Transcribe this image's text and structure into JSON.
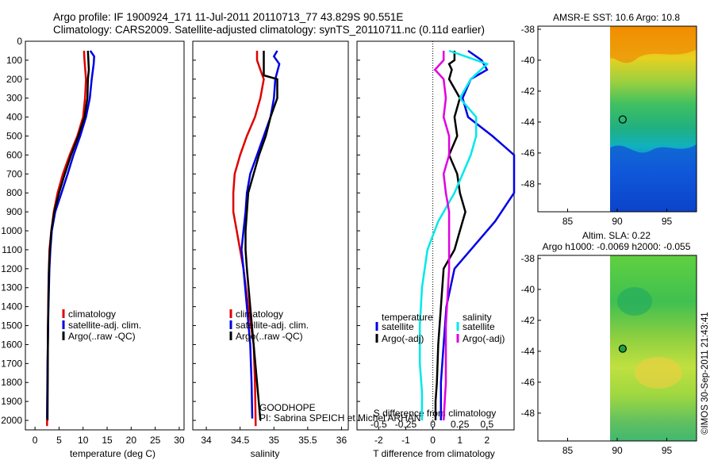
{
  "figure": {
    "title_line1": "Argo profile: IF 1900924_171 11-Jul-2011 20110713_77 43.829S 90.551E",
    "title_line2": "Climatology: CARS2009. Satellite-adjusted climatology: synTS_20110711.nc (0.11d earlier)",
    "project_label": "GOODHOPE",
    "pi_label": "PI: Sabrina SPEICH et Michel ARHAN",
    "credit_label": "©IMOS 30-Sep-2011 21:43:41"
  },
  "colors": {
    "climatology": "#e00000",
    "satellite": "#0000e6",
    "argo": "#000000",
    "sal_satellite": "#00e8e8",
    "sal_argo": "#e000e0"
  },
  "chart_data": [
    {
      "type": "line",
      "xlabel": "temperature (deg C)",
      "ylabel": "",
      "xlim": [
        -2,
        31
      ],
      "ylim": [
        2050,
        0
      ],
      "xticks": [
        0,
        5,
        10,
        15,
        20,
        25,
        30
      ],
      "yticks": [
        0,
        100,
        200,
        300,
        400,
        500,
        600,
        700,
        800,
        900,
        1000,
        1100,
        1200,
        1300,
        1400,
        1500,
        1600,
        1700,
        1800,
        1900,
        2000
      ],
      "legend": [
        "climatology",
        "satellite-adj. clim.",
        "Argo(..raw -QC)"
      ],
      "series": [
        {
          "name": "climatology",
          "color": "climatology",
          "x": [
            10.2,
            10.3,
            10.6,
            10.4,
            10.0,
            8.8,
            7.2,
            5.8,
            4.7,
            3.9,
            3.4,
            3.0,
            2.9,
            2.8,
            2.7,
            2.6,
            2.5
          ],
          "y": [
            50,
            100,
            200,
            300,
            400,
            500,
            600,
            700,
            800,
            900,
            1000,
            1100,
            1200,
            1300,
            1500,
            1800,
            2030
          ]
        },
        {
          "name": "satellite-adj. clim.",
          "color": "satellite",
          "x": [
            11.5,
            12.3,
            12.2,
            11.8,
            11.4,
            10.6,
            9.4,
            8.0,
            6.8,
            5.5,
            4.2,
            3.5,
            3.2,
            3.0,
            2.8,
            2.6,
            2.5
          ],
          "y": [
            50,
            80,
            120,
            200,
            300,
            400,
            500,
            600,
            700,
            800,
            900,
            1000,
            1100,
            1200,
            1400,
            1700,
            1990
          ]
        },
        {
          "name": "Argo(..raw -QC)",
          "color": "argo",
          "x": [
            11.0,
            11.1,
            11.2,
            11.0,
            10.9,
            10.3,
            9.0,
            7.5,
            6.2,
            5.0,
            4.0,
            3.4,
            3.1,
            2.9,
            2.7,
            2.6
          ],
          "y": [
            50,
            100,
            150,
            200,
            300,
            400,
            500,
            600,
            700,
            800,
            900,
            1000,
            1100,
            1200,
            1500,
            2000
          ]
        }
      ]
    },
    {
      "type": "line",
      "xlabel": "salinity",
      "ylabel": "",
      "xlim": [
        33.8,
        36.1
      ],
      "ylim": [
        2050,
        0
      ],
      "xticks": [
        34,
        34.5,
        35,
        35.5,
        36
      ],
      "legend": [
        "climatology",
        "satellite-adj. clim.",
        "Argo(..raw -QC)"
      ],
      "series": [
        {
          "name": "climatology",
          "color": "climatology",
          "x": [
            34.75,
            34.75,
            34.8,
            34.85,
            34.8,
            34.72,
            34.6,
            34.5,
            34.42,
            34.4,
            34.4,
            34.45,
            34.55,
            34.62,
            34.7,
            34.72,
            34.73
          ],
          "y": [
            50,
            100,
            150,
            200,
            300,
            400,
            500,
            600,
            700,
            800,
            900,
            1000,
            1200,
            1400,
            1600,
            1800,
            2030
          ]
        },
        {
          "name": "satellite-adj. clim.",
          "color": "satellite",
          "x": [
            35.05,
            35.0,
            35.08,
            35.02,
            35.0,
            34.95,
            34.85,
            34.75,
            34.65,
            34.6,
            34.58,
            34.55,
            34.52,
            34.55,
            34.6,
            34.65,
            34.67,
            34.68
          ],
          "y": [
            50,
            80,
            120,
            200,
            300,
            400,
            500,
            600,
            700,
            800,
            900,
            1000,
            1100,
            1200,
            1400,
            1600,
            1800,
            1990
          ]
        },
        {
          "name": "Argo(..raw -QC)",
          "color": "argo",
          "x": [
            34.85,
            34.85,
            35.05,
            35.05,
            34.95,
            34.88,
            34.78,
            34.7,
            34.62,
            34.6,
            34.58,
            34.58,
            34.6,
            34.65,
            34.7,
            34.75,
            34.8
          ],
          "y": [
            50,
            180,
            200,
            300,
            400,
            500,
            600,
            700,
            800,
            900,
            1000,
            1100,
            1200,
            1400,
            1600,
            1800,
            2000
          ]
        }
      ]
    },
    {
      "type": "line",
      "xlabel": "T difference from climatology",
      "xlabel_top": "S difference from climatology",
      "xlim": [
        -2.8,
        3.0
      ],
      "ylim": [
        2050,
        0
      ],
      "xticks": [
        -2,
        -1,
        0,
        1,
        2
      ],
      "xticks_top": [
        -0.5,
        -0.25,
        0,
        0.25,
        0.5
      ],
      "legend_titles": [
        "temperature",
        "salinity"
      ],
      "legend": [
        "satellite",
        "Argo(-adj)",
        "satellite",
        "Argo(-adj)"
      ],
      "series": [
        {
          "name": "satellite",
          "group": "temperature",
          "color": "satellite",
          "x": [
            1.3,
            1.8,
            2.0,
            1.4,
            1.1,
            1.3,
            2.2,
            3.0,
            3.0,
            2.3,
            1.4,
            0.8,
            0.5,
            0.4,
            0.3,
            0.3
          ],
          "y": [
            50,
            100,
            150,
            200,
            300,
            400,
            500,
            600,
            800,
            950,
            1100,
            1200,
            1400,
            1600,
            1800,
            2000
          ]
        },
        {
          "name": "Argo(-adj)",
          "group": "temperature",
          "color": "argo",
          "x": [
            0.8,
            0.8,
            0.6,
            0.7,
            0.6,
            1.0,
            0.8,
            0.9,
            0.6,
            0.9,
            1.0,
            1.2,
            1.0,
            0.8,
            0.4,
            0.3,
            0.2,
            0.15,
            0.1,
            0.1
          ],
          "y": [
            50,
            100,
            120,
            150,
            200,
            300,
            400,
            500,
            600,
            700,
            800,
            900,
            1000,
            1100,
            1200,
            1400,
            1600,
            1800,
            1900,
            2000
          ]
        },
        {
          "name": "satellite",
          "group": "salinity",
          "color": "sal_satellite",
          "x": [
            0.15,
            0.3,
            0.5,
            0.35,
            0.25,
            0.4,
            0.4,
            0.35,
            0.2,
            0.05,
            -0.05,
            -0.1,
            -0.12,
            -0.12,
            -0.1,
            -0.1
          ],
          "y": [
            50,
            80,
            120,
            200,
            300,
            400,
            500,
            600,
            800,
            950,
            1100,
            1300,
            1500,
            1700,
            1850,
            2000
          ]
        },
        {
          "name": "Argo(-adj)",
          "group": "salinity",
          "color": "sal_argo",
          "x": [
            0.1,
            0.1,
            0.02,
            0.1,
            0.12,
            0.1,
            0.15,
            0.15,
            0.1,
            0.12,
            0.15,
            0.15,
            0.12,
            0.12,
            0.1
          ],
          "y": [
            50,
            100,
            150,
            200,
            300,
            400,
            500,
            600,
            700,
            800,
            900,
            1200,
            1500,
            1800,
            2000
          ]
        }
      ]
    },
    {
      "type": "heatmap",
      "title": "AMSR-E SST: 10.6 Argo: 10.8",
      "xlim": [
        82,
        98
      ],
      "ylim": [
        -49.8,
        -37.8
      ],
      "xticks": [
        85,
        90,
        95
      ],
      "yticks": [
        -38,
        -40,
        -42,
        -44,
        -46,
        -48
      ],
      "marker": {
        "x": 90.55,
        "y": -43.83
      }
    },
    {
      "type": "heatmap",
      "title_line1": "Altim. SLA: 0.22",
      "title_line2": "Argo h1000: -0.0069 h2000: -0.055",
      "xlim": [
        82,
        98
      ],
      "ylim": [
        -49.8,
        -37.8
      ],
      "xticks": [
        85,
        90,
        95
      ],
      "yticks": [
        -38,
        -40,
        -42,
        -44,
        -46,
        -48
      ],
      "marker": {
        "x": 90.55,
        "y": -43.83
      }
    }
  ]
}
